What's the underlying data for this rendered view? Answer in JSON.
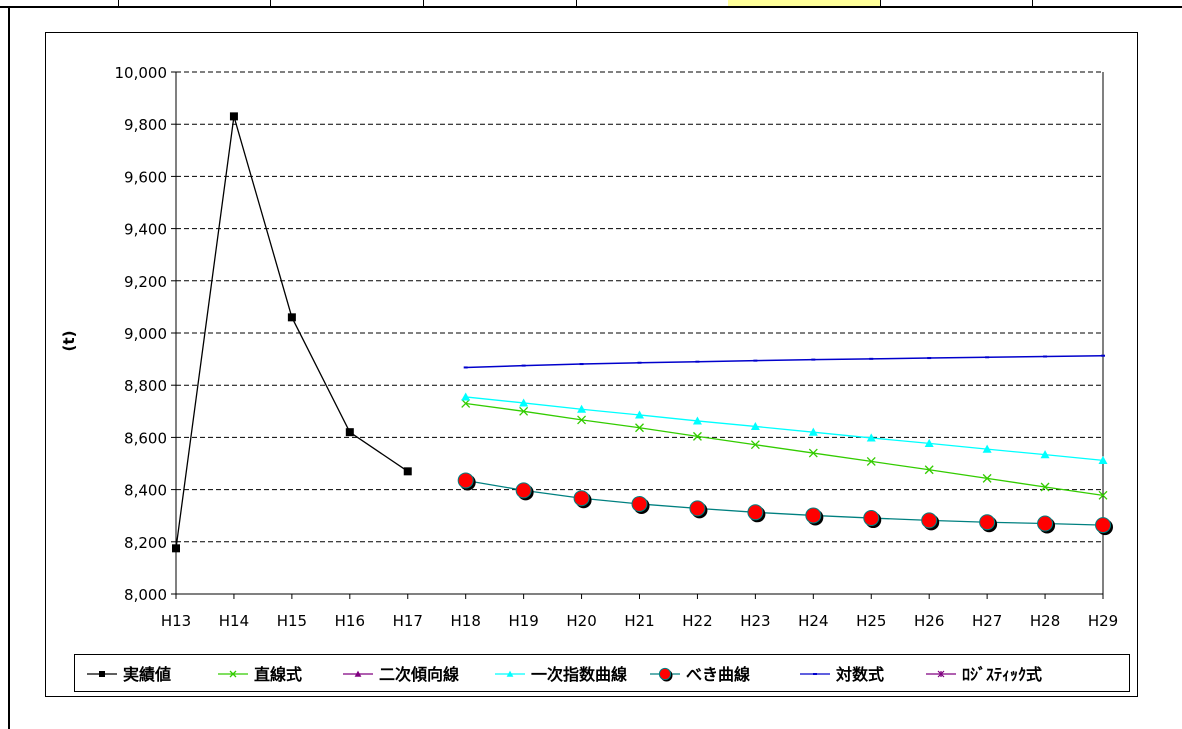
{
  "spreadsheet": {
    "highlight_color": "#ffff99"
  },
  "chart_data": {
    "type": "line",
    "xlabel": "",
    "ylabel": "(t)",
    "ylim": [
      8000,
      10000
    ],
    "yticks": [
      8000,
      8200,
      8400,
      8600,
      8800,
      9000,
      9200,
      9400,
      9600,
      9800,
      10000
    ],
    "ytick_labels": [
      "8,000",
      "8,200",
      "8,400",
      "8,600",
      "8,800",
      "9,000",
      "9,200",
      "9,400",
      "9,600",
      "9,800",
      "10,000"
    ],
    "categories": [
      "H13",
      "H14",
      "H15",
      "H16",
      "H17",
      "H18",
      "H19",
      "H20",
      "H21",
      "H22",
      "H23",
      "H24",
      "H25",
      "H26",
      "H27",
      "H28",
      "H29"
    ],
    "grid": "horizontal-dashed",
    "legend_position": "bottom",
    "series": [
      {
        "name": "実績値",
        "color": "#000000",
        "marker": "square",
        "values": [
          8175,
          9830,
          9060,
          8620,
          8470,
          null,
          null,
          null,
          null,
          null,
          null,
          null,
          null,
          null,
          null,
          null,
          null
        ]
      },
      {
        "name": "直線式",
        "color": "#33cc00",
        "marker": "x",
        "values": [
          null,
          null,
          null,
          null,
          null,
          8730,
          8700,
          8667,
          8637,
          8604,
          8572,
          8540,
          8508,
          8476,
          8443,
          8410,
          8378
        ]
      },
      {
        "name": "二次傾向線",
        "color": "#800080",
        "marker": "triangle",
        "values": [
          null,
          null,
          null,
          null,
          null,
          null,
          null,
          null,
          null,
          null,
          null,
          null,
          null,
          null,
          null,
          null,
          null
        ]
      },
      {
        "name": "一次指数曲線",
        "color": "#00ffff",
        "marker": "triangle",
        "values": [
          null,
          null,
          null,
          null,
          null,
          8755,
          8732,
          8708,
          8686,
          8663,
          8642,
          8620,
          8598,
          8577,
          8555,
          8534,
          8512
        ]
      },
      {
        "name": "べき曲線",
        "color": "#008080",
        "marker": "circle-red",
        "values": [
          null,
          null,
          null,
          null,
          null,
          8435,
          8397,
          8367,
          8345,
          8328,
          8313,
          8301,
          8291,
          8282,
          8275,
          8270,
          8264
        ]
      },
      {
        "name": "対数式",
        "color": "#0000cc",
        "marker": "dash",
        "values": [
          null,
          null,
          null,
          null,
          null,
          8868,
          8875,
          8881,
          8886,
          8890,
          8894,
          8898,
          8901,
          8904,
          8907,
          8910,
          8913
        ]
      },
      {
        "name": "ﾛｼﾞｽﾃｨｯｸ式",
        "color": "#800080",
        "marker": "asterisk",
        "values": [
          null,
          null,
          null,
          null,
          null,
          null,
          null,
          null,
          null,
          null,
          null,
          null,
          null,
          null,
          null,
          null,
          null
        ]
      }
    ]
  }
}
